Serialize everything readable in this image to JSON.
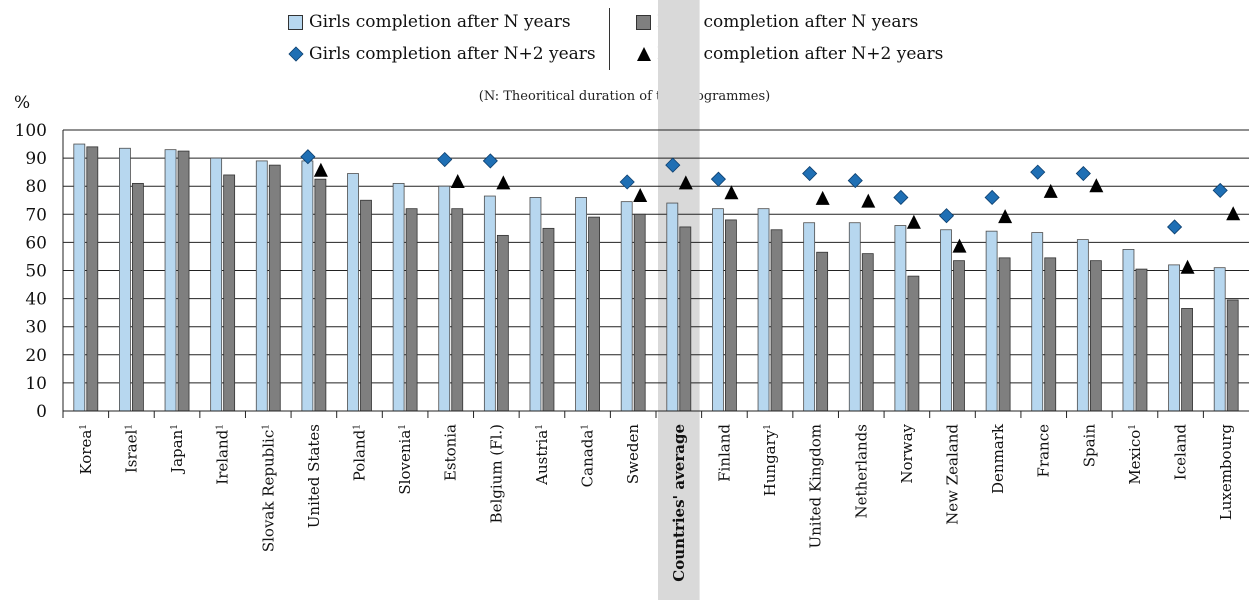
{
  "legend": {
    "girls_n": "Girls completion after N years",
    "boys_n": "Boys completion after N years",
    "girls_n2": "Girls completion after N+2 years",
    "boys_n2": "Boys completion after N+2 years"
  },
  "note": "(N: Theoritical duration of the programmes)",
  "colors": {
    "girls_bar": "#b7d7ef",
    "boys_bar": "#7f7f7f",
    "girls_marker": "#1f6fb4",
    "boys_marker": "#000000",
    "highlight": "#d9d9d9"
  },
  "chart_data": {
    "type": "bar",
    "ylabel": "%",
    "ylim": [
      0,
      100
    ],
    "yticks": [
      0,
      10,
      20,
      30,
      40,
      50,
      60,
      70,
      80,
      90,
      100
    ],
    "grid": true,
    "highlight_category": "Countries' average",
    "categories": [
      {
        "name": "Korea",
        "sup": "1"
      },
      {
        "name": "Israel",
        "sup": "1"
      },
      {
        "name": "Japan",
        "sup": "1"
      },
      {
        "name": "Ireland",
        "sup": "1"
      },
      {
        "name": "Slovak Republic",
        "sup": "1"
      },
      {
        "name": "United States",
        "sup": ""
      },
      {
        "name": "Poland",
        "sup": "1"
      },
      {
        "name": "Slovenia",
        "sup": "1"
      },
      {
        "name": "Estonia",
        "sup": ""
      },
      {
        "name": "Belgium (Fl.)",
        "sup": ""
      },
      {
        "name": "Austria",
        "sup": "1"
      },
      {
        "name": "Canada",
        "sup": "1"
      },
      {
        "name": "Sweden",
        "sup": ""
      },
      {
        "name": "Countries' average",
        "sup": ""
      },
      {
        "name": "Finland",
        "sup": ""
      },
      {
        "name": "Hungary",
        "sup": "1"
      },
      {
        "name": "United Kingdom",
        "sup": ""
      },
      {
        "name": "Netherlands",
        "sup": ""
      },
      {
        "name": "Norway",
        "sup": ""
      },
      {
        "name": "New Zealand",
        "sup": ""
      },
      {
        "name": "Denmark",
        "sup": ""
      },
      {
        "name": "France",
        "sup": ""
      },
      {
        "name": "Spain",
        "sup": ""
      },
      {
        "name": "Mexico",
        "sup": "1"
      },
      {
        "name": "Iceland",
        "sup": ""
      },
      {
        "name": "Luxembourg",
        "sup": ""
      }
    ],
    "series": [
      {
        "name": "Girls completion after N years",
        "kind": "bar",
        "values": [
          95,
          93.5,
          93,
          90,
          89,
          89,
          84.5,
          81,
          80,
          76.5,
          76,
          76,
          74.5,
          74,
          72,
          72,
          67,
          67,
          66,
          64.5,
          64,
          63.5,
          61,
          57.5,
          52,
          51
        ]
      },
      {
        "name": "Boys completion after N years",
        "kind": "bar",
        "values": [
          94,
          81,
          92.5,
          84,
          87.5,
          82.5,
          75,
          72,
          72,
          62.5,
          65,
          69,
          70,
          65.5,
          68,
          64.5,
          56.5,
          56,
          48,
          53.5,
          54.5,
          54.5,
          53.5,
          50.5,
          36.5,
          39.5
        ]
      },
      {
        "name": "Girls completion after N+2 years",
        "kind": "diamond",
        "values": [
          null,
          null,
          null,
          null,
          null,
          90.5,
          null,
          null,
          89.5,
          89,
          null,
          null,
          81.5,
          87.5,
          82.5,
          null,
          84.5,
          82,
          76,
          69.5,
          76,
          85,
          84.5,
          null,
          65.5,
          78.5
        ]
      },
      {
        "name": "Boys completion after N+2 years",
        "kind": "triangle",
        "values": [
          null,
          null,
          null,
          null,
          null,
          85.5,
          null,
          null,
          81.5,
          81,
          null,
          null,
          76.5,
          81,
          77.5,
          null,
          75.5,
          74.5,
          67,
          58.5,
          69,
          78,
          80,
          null,
          51,
          70
        ]
      }
    ]
  }
}
